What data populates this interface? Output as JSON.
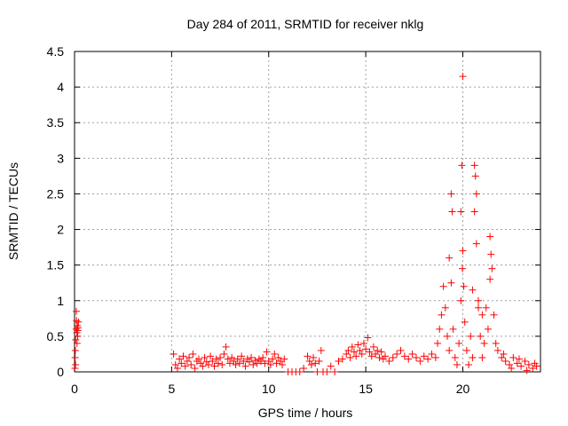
{
  "chart_data": {
    "type": "scatter",
    "title": "Day 284 of 2011, SRMTID for receiver nklg",
    "xlabel": "GPS time / hours",
    "ylabel": "SRMTID / TECUs",
    "xlim": [
      0,
      24
    ],
    "ylim": [
      0,
      4.5
    ],
    "x_ticks": [
      "0",
      "5",
      "10",
      "15",
      "20"
    ],
    "x_tick_values": [
      0,
      5,
      10,
      15,
      20
    ],
    "y_ticks": [
      "0",
      "0.5",
      "1",
      "1.5",
      "2",
      "2.5",
      "3",
      "3.5",
      "4",
      "4.5"
    ],
    "y_tick_values": [
      0,
      0.5,
      1,
      1.5,
      2,
      2.5,
      3,
      3.5,
      4,
      4.5
    ],
    "grid": true,
    "marker": "plus",
    "marker_color": "#ff0000",
    "series": [
      {
        "points": [
          [
            0.02,
            0.05
          ],
          [
            0.04,
            0.3
          ],
          [
            0.06,
            0.45
          ],
          [
            0.08,
            0.6
          ],
          [
            0.1,
            0.72
          ],
          [
            0.12,
            0.55
          ],
          [
            0.14,
            0.65
          ],
          [
            0.16,
            0.5
          ],
          [
            0.18,
            0.62
          ],
          [
            0.2,
            0.7
          ],
          [
            0.05,
            0.1
          ],
          [
            0.09,
            0.85
          ],
          [
            0.13,
            0.4
          ],
          [
            0.17,
            0.58
          ],
          [
            0.03,
            0.2
          ],
          [
            5.1,
            0.25
          ],
          [
            5.2,
            0.1
          ],
          [
            5.3,
            0.05
          ],
          [
            5.4,
            0.18
          ],
          [
            5.5,
            0.12
          ],
          [
            5.6,
            0.22
          ],
          [
            5.7,
            0.08
          ],
          [
            5.8,
            0.15
          ],
          [
            5.9,
            0.2
          ],
          [
            6.0,
            0.1
          ],
          [
            6.1,
            0.25
          ],
          [
            6.2,
            0.05
          ],
          [
            6.3,
            0.15
          ],
          [
            6.4,
            0.18
          ],
          [
            6.5,
            0.12
          ],
          [
            6.6,
            0.08
          ],
          [
            6.7,
            0.2
          ],
          [
            6.8,
            0.14
          ],
          [
            6.9,
            0.1
          ],
          [
            7.0,
            0.22
          ],
          [
            7.1,
            0.15
          ],
          [
            7.2,
            0.08
          ],
          [
            7.3,
            0.18
          ],
          [
            7.4,
            0.12
          ],
          [
            7.5,
            0.2
          ],
          [
            7.6,
            0.1
          ],
          [
            7.7,
            0.25
          ],
          [
            7.8,
            0.35
          ],
          [
            7.9,
            0.18
          ],
          [
            8.0,
            0.12
          ],
          [
            8.1,
            0.2
          ],
          [
            8.2,
            0.15
          ],
          [
            8.3,
            0.1
          ],
          [
            8.4,
            0.18
          ],
          [
            8.5,
            0.12
          ],
          [
            8.6,
            0.22
          ],
          [
            8.7,
            0.15
          ],
          [
            8.8,
            0.08
          ],
          [
            8.9,
            0.18
          ],
          [
            9.0,
            0.14
          ],
          [
            9.1,
            0.2
          ],
          [
            9.2,
            0.1
          ],
          [
            9.3,
            0.16
          ],
          [
            9.4,
            0.12
          ],
          [
            9.5,
            0.18
          ],
          [
            9.6,
            0.15
          ],
          [
            9.7,
            0.2
          ],
          [
            9.8,
            0.12
          ],
          [
            9.9,
            0.28
          ],
          [
            10.0,
            0.15
          ],
          [
            10.1,
            0.1
          ],
          [
            10.2,
            0.18
          ],
          [
            10.3,
            0.25
          ],
          [
            10.4,
            0.12
          ],
          [
            10.5,
            0.2
          ],
          [
            10.6,
            0.15
          ],
          [
            10.7,
            0.1
          ],
          [
            10.8,
            0.18
          ],
          [
            11.0,
            0.0
          ],
          [
            11.2,
            0.0
          ],
          [
            11.4,
            0.0
          ],
          [
            11.6,
            0.0
          ],
          [
            11.8,
            0.05
          ],
          [
            12.0,
            0.22
          ],
          [
            12.1,
            0.15
          ],
          [
            12.2,
            0.1
          ],
          [
            12.3,
            0.2
          ],
          [
            12.4,
            0.12
          ],
          [
            12.5,
            0.0
          ],
          [
            12.6,
            0.15
          ],
          [
            12.7,
            0.3
          ],
          [
            12.8,
            0.0
          ],
          [
            13.0,
            0.0
          ],
          [
            13.2,
            0.08
          ],
          [
            13.4,
            0.0
          ],
          [
            13.6,
            0.15
          ],
          [
            13.8,
            0.18
          ],
          [
            14.0,
            0.25
          ],
          [
            14.1,
            0.3
          ],
          [
            14.2,
            0.2
          ],
          [
            14.3,
            0.35
          ],
          [
            14.4,
            0.28
          ],
          [
            14.5,
            0.22
          ],
          [
            14.6,
            0.38
          ],
          [
            14.7,
            0.3
          ],
          [
            14.8,
            0.25
          ],
          [
            14.9,
            0.4
          ],
          [
            15.0,
            0.32
          ],
          [
            15.1,
            0.48
          ],
          [
            15.2,
            0.28
          ],
          [
            15.3,
            0.22
          ],
          [
            15.4,
            0.35
          ],
          [
            15.5,
            0.25
          ],
          [
            15.6,
            0.3
          ],
          [
            15.7,
            0.2
          ],
          [
            15.8,
            0.28
          ],
          [
            15.9,
            0.18
          ],
          [
            16.0,
            0.22
          ],
          [
            16.2,
            0.15
          ],
          [
            16.4,
            0.2
          ],
          [
            16.6,
            0.25
          ],
          [
            16.8,
            0.3
          ],
          [
            17.0,
            0.22
          ],
          [
            17.2,
            0.18
          ],
          [
            17.4,
            0.25
          ],
          [
            17.6,
            0.2
          ],
          [
            17.8,
            0.15
          ],
          [
            18.0,
            0.22
          ],
          [
            18.2,
            0.18
          ],
          [
            18.4,
            0.25
          ],
          [
            18.6,
            0.2
          ],
          [
            18.7,
            0.4
          ],
          [
            18.8,
            0.6
          ],
          [
            18.9,
            0.8
          ],
          [
            19.0,
            1.2
          ],
          [
            19.1,
            0.9
          ],
          [
            19.2,
            0.5
          ],
          [
            19.3,
            0.3
          ],
          [
            19.4,
            1.25
          ],
          [
            19.5,
            0.6
          ],
          [
            19.6,
            0.2
          ],
          [
            19.7,
            0.1
          ],
          [
            19.8,
            0.4
          ],
          [
            19.9,
            1.0
          ],
          [
            20.0,
            4.15
          ],
          [
            19.95,
            2.9
          ],
          [
            19.9,
            2.25
          ],
          [
            20.0,
            1.7
          ],
          [
            19.98,
            1.45
          ],
          [
            20.05,
            1.2
          ],
          [
            20.1,
            0.7
          ],
          [
            20.2,
            0.3
          ],
          [
            20.3,
            0.1
          ],
          [
            20.4,
            0.5
          ],
          [
            20.5,
            1.15
          ],
          [
            20.6,
            2.9
          ],
          [
            20.65,
            2.75
          ],
          [
            20.7,
            2.5
          ],
          [
            20.6,
            2.25
          ],
          [
            20.7,
            1.8
          ],
          [
            20.8,
            0.9
          ],
          [
            20.9,
            0.5
          ],
          [
            21.0,
            0.8
          ],
          [
            21.1,
            0.4
          ],
          [
            21.2,
            0.9
          ],
          [
            21.3,
            0.6
          ],
          [
            21.4,
            1.9
          ],
          [
            21.45,
            1.65
          ],
          [
            21.5,
            1.45
          ],
          [
            21.4,
            1.3
          ],
          [
            21.6,
            0.8
          ],
          [
            21.7,
            0.4
          ],
          [
            21.8,
            0.3
          ],
          [
            19.4,
            2.5
          ],
          [
            19.45,
            2.25
          ],
          [
            19.3,
            1.6
          ],
          [
            20.5,
            0.2
          ],
          [
            20.8,
            1.0
          ],
          [
            21.0,
            0.2
          ],
          [
            22.0,
            0.2
          ],
          [
            22.2,
            0.15
          ],
          [
            22.4,
            0.1
          ],
          [
            22.6,
            0.2
          ],
          [
            22.8,
            0.12
          ],
          [
            23.0,
            0.08
          ],
          [
            23.2,
            0.15
          ],
          [
            23.4,
            0.1
          ],
          [
            23.6,
            0.05
          ],
          [
            23.8,
            0.08
          ],
          [
            22.1,
            0.25
          ],
          [
            22.5,
            0.05
          ],
          [
            22.9,
            0.18
          ],
          [
            23.3,
            0.02
          ],
          [
            23.7,
            0.12
          ]
        ]
      }
    ]
  }
}
